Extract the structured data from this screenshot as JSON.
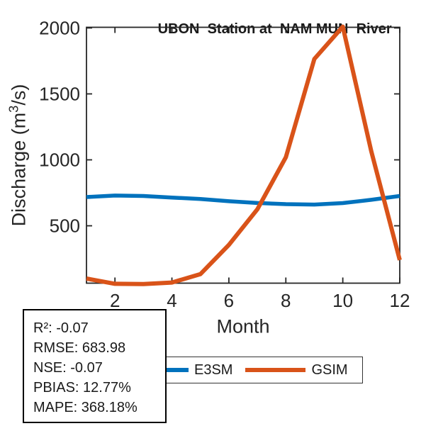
{
  "figure": {
    "title": "UBON  Station at  NAM MUN  River",
    "xlabel": "Month",
    "ylabel_prefix": "Discharge (m",
    "ylabel_sup": "3",
    "ylabel_suffix": "/s)"
  },
  "chart_data": {
    "type": "line",
    "title": "UBON  Station at  NAM MUN  River",
    "xlabel": "Month",
    "ylabel": "Discharge (m^3/s)",
    "x": [
      1,
      2,
      3,
      4,
      5,
      6,
      7,
      8,
      9,
      10,
      11,
      12
    ],
    "series": [
      {
        "name": "E3SM",
        "color": "#0072BD",
        "line_width": 5.5,
        "values": [
          718,
          729,
          726,
          714,
          703,
          686,
          673,
          664,
          661,
          672,
          697,
          726
        ]
      },
      {
        "name": "GSIM",
        "color": "#D95319",
        "line_width": 6,
        "values": [
          100,
          60,
          58,
          70,
          133,
          355,
          625,
          1020,
          1765,
          2010,
          1065,
          240
        ]
      }
    ],
    "xlim": [
      1,
      12
    ],
    "ylim": [
      65,
      2005
    ],
    "xticks": [
      2,
      4,
      6,
      8,
      10,
      12
    ],
    "yticks": [
      500,
      1000,
      1500,
      2000
    ],
    "grid": false,
    "legend_position": "below-axes",
    "axis_color": "#262626"
  },
  "legend": {
    "entries": [
      {
        "label": "E3SM",
        "color": "#0072BD"
      },
      {
        "label": "GSIM",
        "color": "#D95319"
      }
    ]
  },
  "stats": {
    "lines": [
      "R²: -0.07",
      "RMSE: 683.98",
      "NSE: -0.07",
      "PBIAS: 12.77%",
      "MAPE: 368.18%"
    ]
  }
}
